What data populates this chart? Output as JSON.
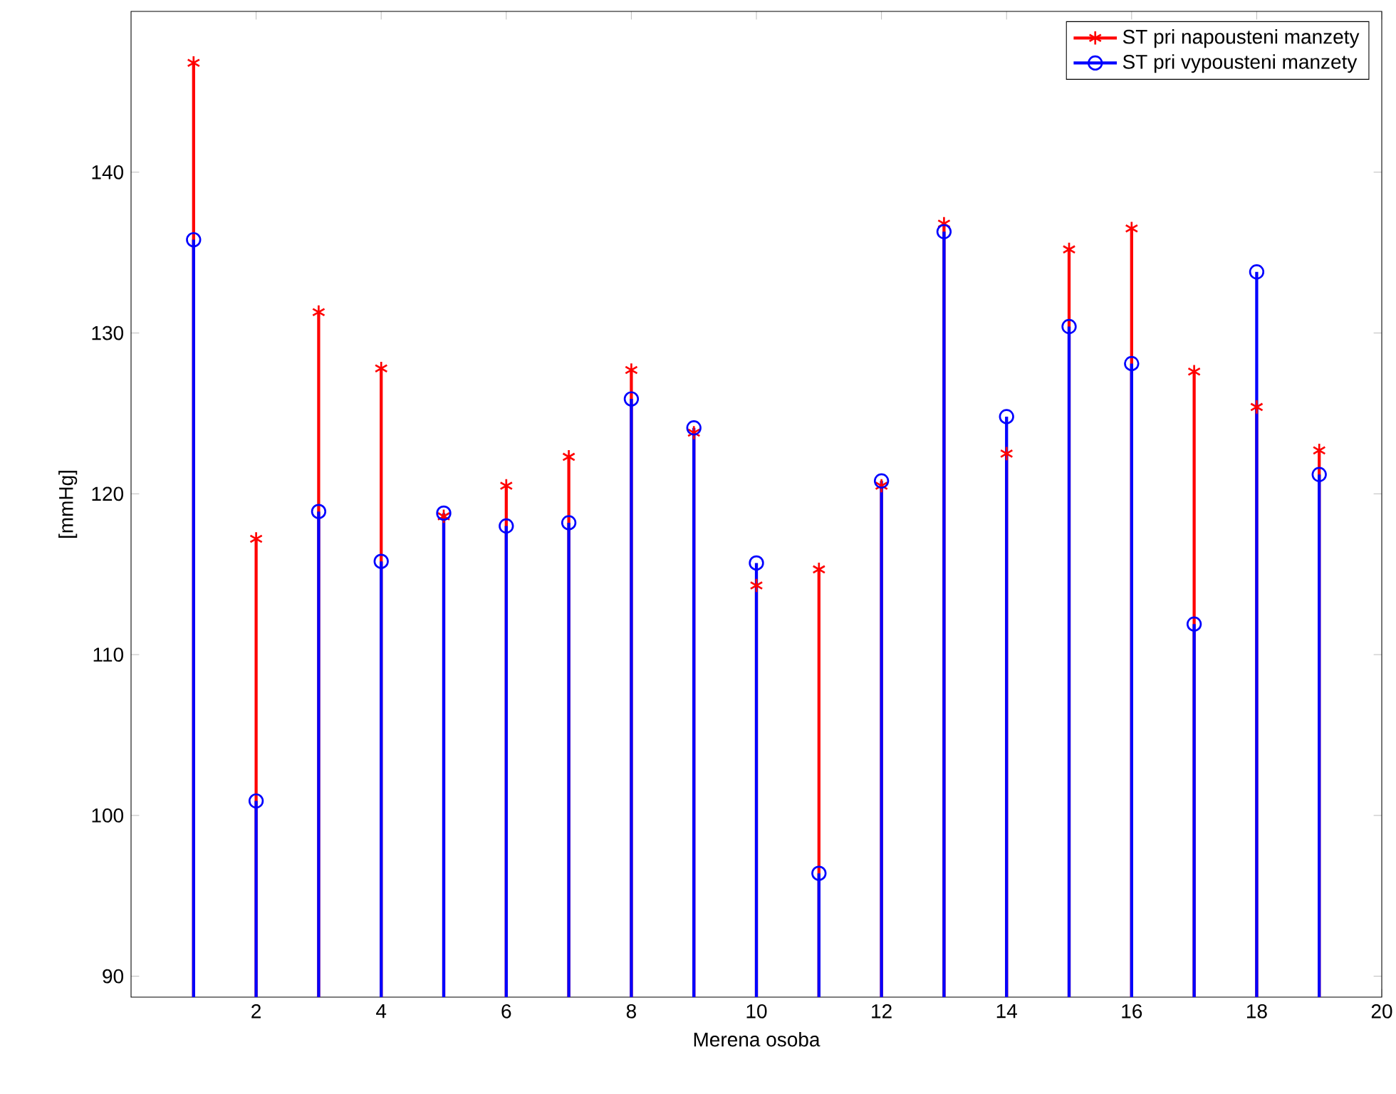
{
  "chart_data": {
    "type": "lollipop",
    "xlabel": "Merena osoba",
    "ylabel": "[mmHg]",
    "x": [
      1,
      2,
      3,
      4,
      5,
      6,
      7,
      8,
      9,
      10,
      11,
      12,
      13,
      14,
      15,
      16,
      17,
      18,
      19
    ],
    "series": [
      {
        "name": "ST pri napousteni manzety",
        "color": "#ff0000",
        "marker": "cross",
        "values": [
          146.8,
          117.2,
          131.3,
          127.8,
          118.6,
          120.5,
          122.3,
          127.7,
          123.8,
          114.3,
          115.3,
          120.5,
          136.8,
          122.5,
          135.2,
          136.5,
          127.6,
          125.4,
          122.7
        ]
      },
      {
        "name": "ST pri vypousteni manzety",
        "color": "#0000ff",
        "marker": "circle",
        "values": [
          135.8,
          100.9,
          118.9,
          115.8,
          118.8,
          118.0,
          118.2,
          125.9,
          124.1,
          115.7,
          96.4,
          120.8,
          136.3,
          124.8,
          130.4,
          128.1,
          111.9,
          133.8,
          121.2
        ]
      }
    ],
    "xlim": [
      0,
      20
    ],
    "xticks": [
      2,
      4,
      6,
      8,
      10,
      12,
      14,
      16,
      18,
      20
    ],
    "ylim": [
      88.7,
      150
    ],
    "yticks": [
      90,
      100,
      110,
      120,
      130,
      140
    ],
    "grid": false,
    "legend": "top right"
  }
}
